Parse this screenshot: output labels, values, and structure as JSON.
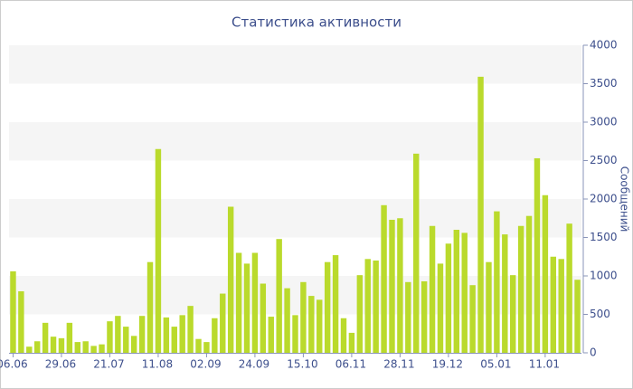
{
  "chart_data": {
    "type": "bar",
    "title": "Статистика активности",
    "y_label": "Сообщений",
    "color": "#bada2c",
    "band_color": "#f5f5f5",
    "bands": true,
    "categories": [
      "06.06",
      null,
      null,
      null,
      null,
      null,
      "29.06",
      null,
      null,
      null,
      null,
      null,
      "21.07",
      null,
      null,
      null,
      null,
      null,
      "11.08",
      null,
      null,
      null,
      null,
      null,
      "02.09",
      null,
      null,
      null,
      null,
      null,
      "24.09",
      null,
      null,
      null,
      null,
      null,
      "15.10",
      null,
      null,
      null,
      null,
      null,
      "06.11",
      null,
      null,
      null,
      null,
      null,
      "28.11",
      null,
      null,
      null,
      null,
      null,
      "19.12",
      null,
      null,
      null,
      null,
      null,
      "05.01",
      null,
      null,
      null,
      null,
      null,
      "11.01",
      null,
      null,
      null,
      null
    ],
    "values": [
      1060,
      800,
      80,
      150,
      390,
      210,
      190,
      390,
      140,
      150,
      90,
      110,
      410,
      480,
      340,
      220,
      480,
      1180,
      2650,
      460,
      340,
      490,
      610,
      180,
      140,
      450,
      770,
      1900,
      1300,
      1160,
      1300,
      900,
      470,
      1480,
      840,
      490,
      920,
      740,
      690,
      1180,
      1270,
      450,
      260,
      1010,
      1220,
      1200,
      1920,
      1730,
      1750,
      920,
      2590,
      930,
      1650,
      1160,
      1420,
      1600,
      1560,
      880,
      3590,
      1180,
      1840,
      1540,
      1010,
      1650,
      1780,
      2530,
      2050,
      1250,
      1220,
      1680,
      950
    ],
    "ylim": [
      0,
      4000
    ],
    "yticks": [
      0,
      500,
      1000,
      1500,
      2000,
      2500,
      3000,
      3500,
      4000
    ]
  }
}
